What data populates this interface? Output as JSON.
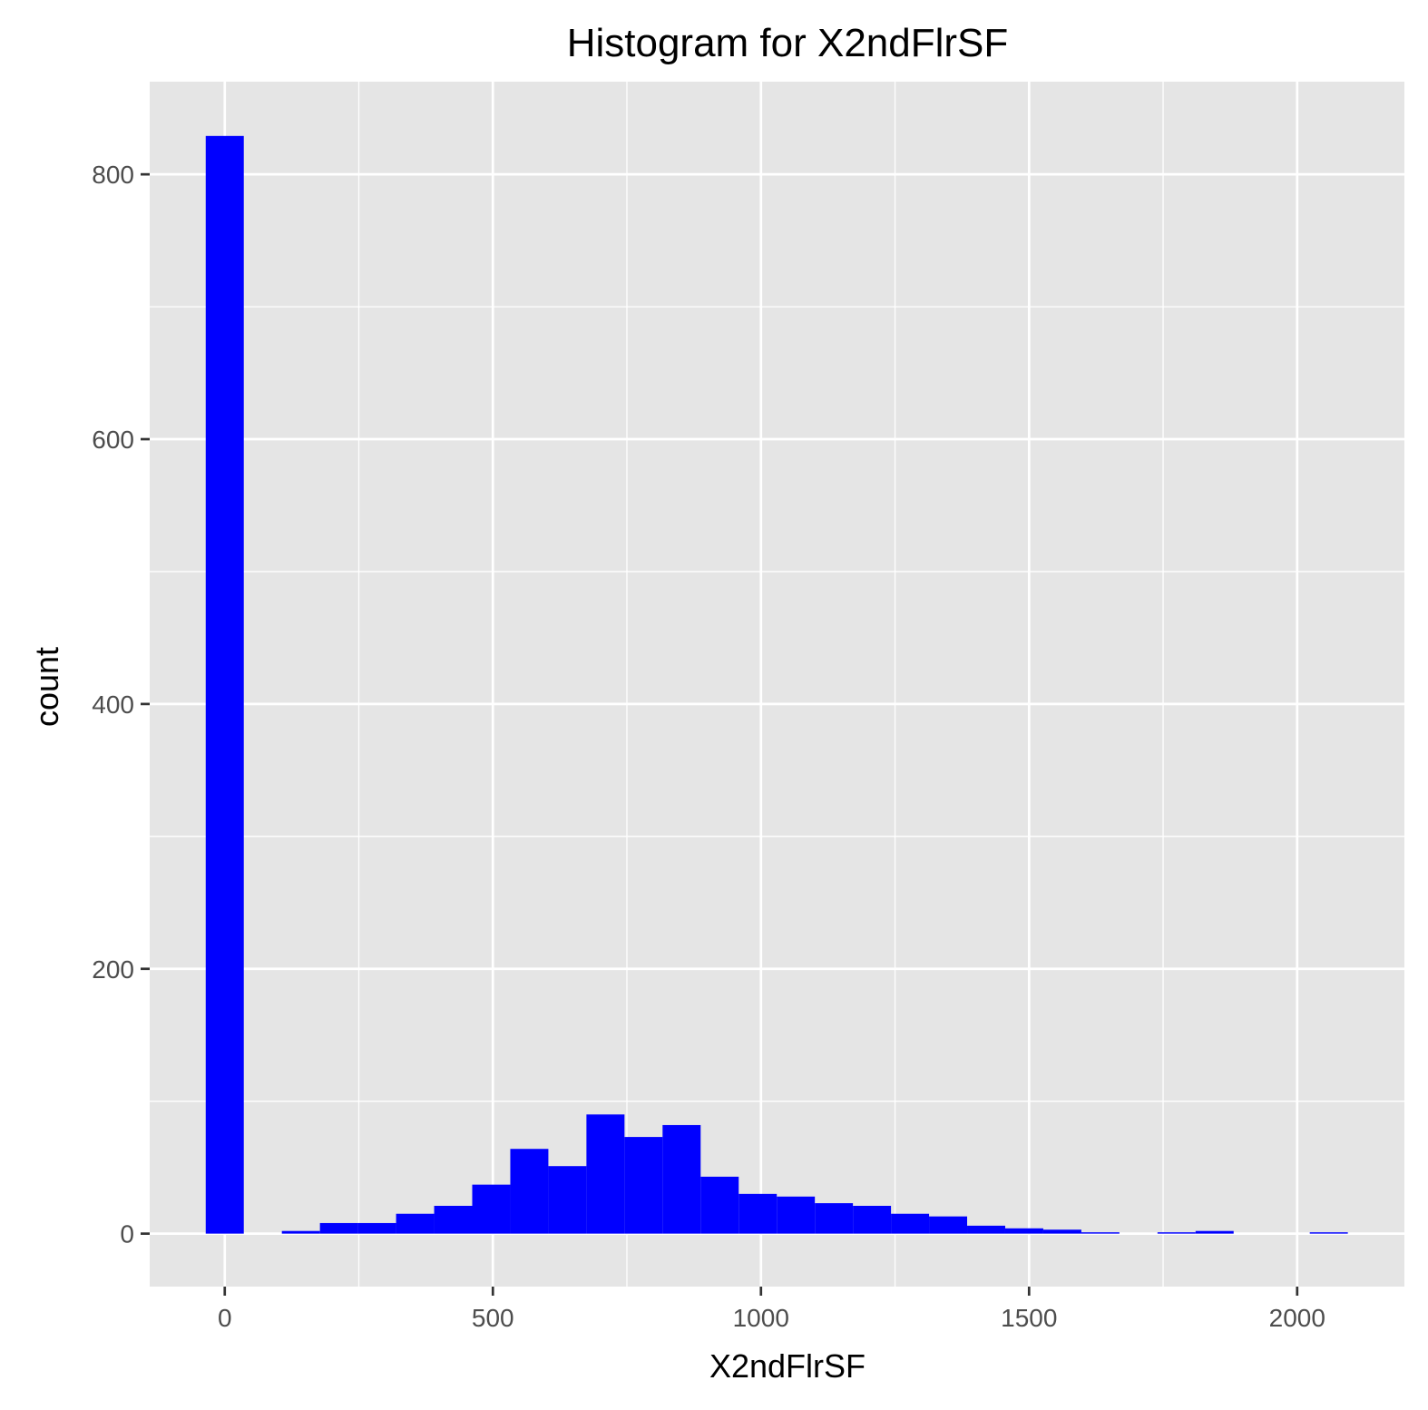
{
  "chart_data": {
    "type": "bar",
    "title": "Histogram for X2ndFlrSF",
    "xlabel": "X2ndFlrSF",
    "ylabel": "count",
    "xlim": [
      -140,
      2200
    ],
    "ylim": [
      -40,
      870
    ],
    "x_ticks": [
      0,
      500,
      1000,
      1500,
      2000
    ],
    "x_tick_labels": [
      "0",
      "500",
      "1000",
      "1500",
      "2000"
    ],
    "y_ticks": [
      0,
      200,
      400,
      600,
      800
    ],
    "y_tick_labels": [
      "0",
      "200",
      "400",
      "600",
      "800"
    ],
    "grid": true,
    "bar_color": "#0000ff",
    "panel_background": "#e5e5e5",
    "grid_color": "#ffffff",
    "bins": [
      {
        "x0": -35.5,
        "x1": 35.5,
        "count": 829
      },
      {
        "x0": 35.5,
        "x1": 106.5,
        "count": 0
      },
      {
        "x0": 106.5,
        "x1": 177.5,
        "count": 2
      },
      {
        "x0": 177.5,
        "x1": 248.5,
        "count": 8
      },
      {
        "x0": 248.5,
        "x1": 319.5,
        "count": 8
      },
      {
        "x0": 319.5,
        "x1": 390.5,
        "count": 15
      },
      {
        "x0": 390.5,
        "x1": 461.5,
        "count": 21
      },
      {
        "x0": 461.5,
        "x1": 532.5,
        "count": 37
      },
      {
        "x0": 532.5,
        "x1": 603.5,
        "count": 64
      },
      {
        "x0": 603.5,
        "x1": 674.5,
        "count": 51
      },
      {
        "x0": 674.5,
        "x1": 745.5,
        "count": 90
      },
      {
        "x0": 745.5,
        "x1": 816.5,
        "count": 73
      },
      {
        "x0": 816.5,
        "x1": 887.5,
        "count": 82
      },
      {
        "x0": 887.5,
        "x1": 958.5,
        "count": 43
      },
      {
        "x0": 958.5,
        "x1": 1029.5,
        "count": 30
      },
      {
        "x0": 1029.5,
        "x1": 1100.5,
        "count": 28
      },
      {
        "x0": 1100.5,
        "x1": 1171.5,
        "count": 23
      },
      {
        "x0": 1171.5,
        "x1": 1242.5,
        "count": 21
      },
      {
        "x0": 1242.5,
        "x1": 1313.5,
        "count": 15
      },
      {
        "x0": 1313.5,
        "x1": 1384.5,
        "count": 13
      },
      {
        "x0": 1384.5,
        "x1": 1455.5,
        "count": 6
      },
      {
        "x0": 1455.5,
        "x1": 1526.5,
        "count": 4
      },
      {
        "x0": 1526.5,
        "x1": 1597.5,
        "count": 3
      },
      {
        "x0": 1597.5,
        "x1": 1668.5,
        "count": 1
      },
      {
        "x0": 1668.5,
        "x1": 1739.5,
        "count": 0
      },
      {
        "x0": 1739.5,
        "x1": 1810.5,
        "count": 1
      },
      {
        "x0": 1810.5,
        "x1": 1881.5,
        "count": 2
      },
      {
        "x0": 1881.5,
        "x1": 1952.5,
        "count": 0
      },
      {
        "x0": 1952.5,
        "x1": 2023.5,
        "count": 0
      },
      {
        "x0": 2023.5,
        "x1": 2094.5,
        "count": 1
      }
    ]
  }
}
